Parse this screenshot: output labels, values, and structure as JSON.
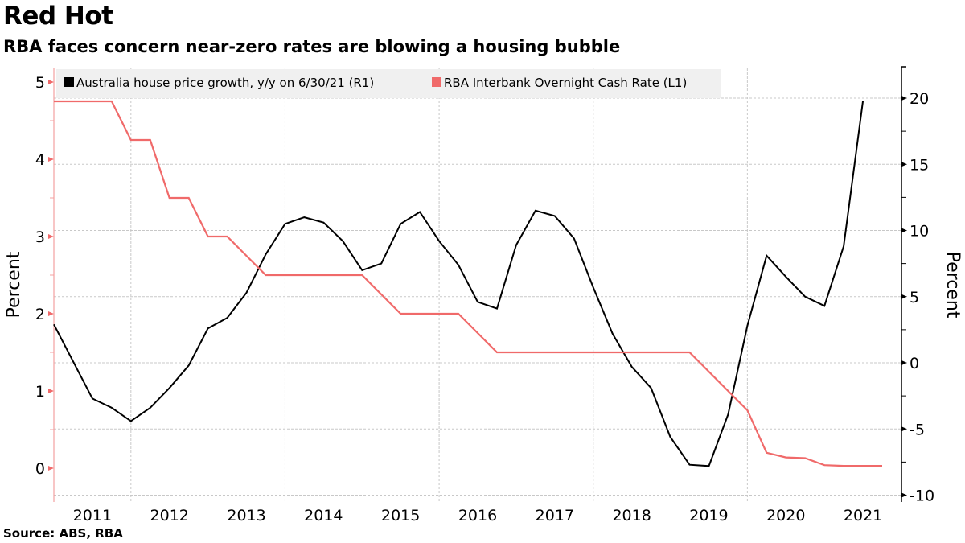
{
  "header": {
    "title": "Red Hot",
    "subtitle": "RBA faces concern near-zero rates are blowing a housing bubble"
  },
  "footer": {
    "source": "Source: ABS, RBA"
  },
  "chart_data": {
    "type": "line",
    "title": "Red Hot",
    "subtitle": "RBA faces concern near-zero rates are blowing a housing bubble",
    "xlabel": "",
    "x_range": [
      2011.0,
      2022.0
    ],
    "x_tick_labels": [
      "2011",
      "2012",
      "2013",
      "2014",
      "2015",
      "2016",
      "2017",
      "2018",
      "2019",
      "2020",
      "2021"
    ],
    "left_axis": {
      "label": "Percent",
      "ylim": [
        -0.4,
        5.2
      ],
      "ticks": [
        0,
        1,
        2,
        3,
        4,
        5
      ],
      "tick_labels": [
        "0",
        "1",
        "2",
        "3",
        "4",
        "5"
      ],
      "color": "#f06a6a"
    },
    "right_axis": {
      "label": "Percent",
      "ylim": [
        -10,
        22
      ],
      "ticks": [
        -10,
        -5,
        0,
        5,
        10,
        15,
        20
      ],
      "tick_labels": [
        "-10",
        "-5",
        "0",
        "5",
        "10",
        "15",
        "20"
      ],
      "color": "#000000"
    },
    "grid": true,
    "legend_position": "top-left",
    "x": [
      2011.0,
      2011.25,
      2011.5,
      2011.75,
      2012.0,
      2012.25,
      2012.5,
      2012.75,
      2013.0,
      2013.25,
      2013.5,
      2013.75,
      2014.0,
      2014.25,
      2014.5,
      2014.75,
      2015.0,
      2015.25,
      2015.5,
      2015.75,
      2016.0,
      2016.25,
      2016.5,
      2016.75,
      2017.0,
      2017.25,
      2017.5,
      2017.75,
      2018.0,
      2018.25,
      2018.5,
      2018.75,
      2019.0,
      2019.25,
      2019.5,
      2019.75,
      2020.0,
      2020.25,
      2020.5,
      2020.75,
      2021.0,
      2021.25,
      2021.5,
      2021.75
    ],
    "series": [
      {
        "name": "Australia house price growth, y/y on 6/30/21 (R1)",
        "axis": "right",
        "color": "#000000",
        "x": [
          2011.0,
          2011.25,
          2011.5,
          2011.75,
          2012.0,
          2012.25,
          2012.5,
          2012.75,
          2013.0,
          2013.25,
          2013.5,
          2013.75,
          2014.0,
          2014.25,
          2014.5,
          2014.75,
          2015.0,
          2015.25,
          2015.5,
          2015.75,
          2016.0,
          2016.25,
          2016.5,
          2016.75,
          2017.0,
          2017.25,
          2017.5,
          2017.75,
          2018.0,
          2018.25,
          2018.5,
          2018.75,
          2019.0,
          2019.25,
          2019.5,
          2019.75,
          2020.0,
          2020.25,
          2020.5,
          2020.75,
          2021.0,
          2021.25,
          2021.5
        ],
        "values": [
          2.9,
          0.1,
          -2.7,
          -3.4,
          -4.4,
          -3.4,
          -1.9,
          -0.2,
          2.6,
          3.4,
          5.3,
          8.2,
          10.5,
          11.0,
          10.6,
          9.2,
          7.0,
          7.5,
          10.5,
          11.4,
          9.2,
          7.4,
          4.6,
          4.1,
          8.9,
          11.5,
          11.1,
          9.4,
          5.7,
          2.2,
          -0.3,
          -1.9,
          -5.6,
          -7.7,
          -7.8,
          -3.9,
          2.8,
          8.1,
          6.5,
          5.0,
          4.3,
          8.8,
          19.8
        ]
      },
      {
        "name": "RBA Interbank Overnight Cash Rate (L1)",
        "axis": "left",
        "color": "#f06a6a",
        "x": [
          2011.0,
          2011.25,
          2011.5,
          2011.75,
          2012.0,
          2012.25,
          2012.5,
          2012.75,
          2013.0,
          2013.25,
          2013.5,
          2013.75,
          2014.0,
          2014.25,
          2014.5,
          2014.75,
          2015.0,
          2015.25,
          2015.5,
          2015.75,
          2016.0,
          2016.25,
          2016.5,
          2016.75,
          2017.0,
          2017.25,
          2017.5,
          2017.75,
          2018.0,
          2018.25,
          2018.5,
          2018.75,
          2019.0,
          2019.25,
          2019.5,
          2019.75,
          2020.0,
          2020.25,
          2020.5,
          2020.75,
          2021.0,
          2021.25,
          2021.5,
          2021.75
        ],
        "values": [
          4.75,
          4.75,
          4.75,
          4.75,
          4.25,
          4.25,
          3.5,
          3.5,
          3.0,
          3.0,
          2.75,
          2.5,
          2.5,
          2.5,
          2.5,
          2.5,
          2.5,
          2.25,
          2.0,
          2.0,
          2.0,
          2.0,
          1.75,
          1.5,
          1.5,
          1.5,
          1.5,
          1.5,
          1.5,
          1.5,
          1.5,
          1.5,
          1.5,
          1.5,
          1.25,
          1.0,
          0.75,
          0.2,
          0.14,
          0.13,
          0.04,
          0.03,
          0.03,
          0.03
        ]
      }
    ]
  }
}
